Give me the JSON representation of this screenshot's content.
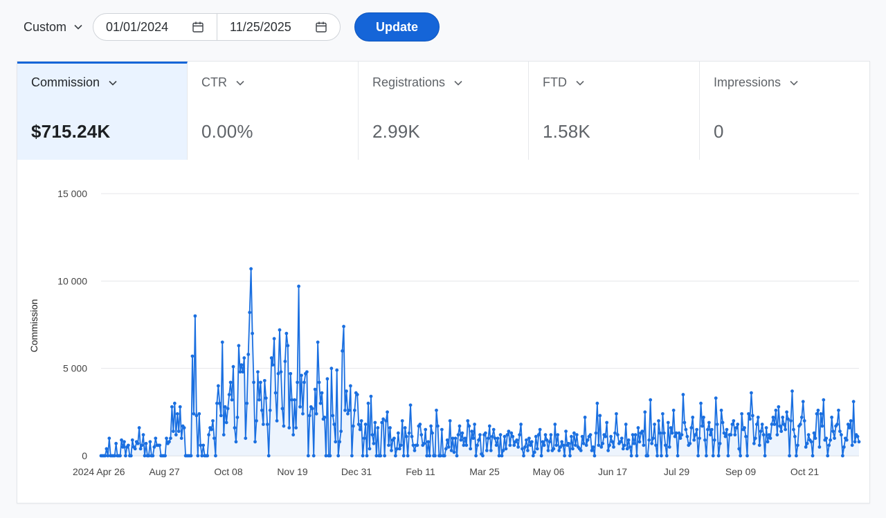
{
  "toolbar": {
    "range_label": "Custom",
    "start_date": "01/01/2024",
    "end_date": "11/25/2025",
    "update_label": "Update"
  },
  "metrics": [
    {
      "label": "Commission",
      "value": "$715.24K",
      "active": true
    },
    {
      "label": "CTR",
      "value": "0.00%",
      "active": false
    },
    {
      "label": "Registrations",
      "value": "2.99K",
      "active": false
    },
    {
      "label": "FTD",
      "value": "1.58K",
      "active": false
    },
    {
      "label": "Impressions",
      "value": "0",
      "active": false
    }
  ],
  "colors": {
    "accent": "#1565d8",
    "line": "#1a6fe0",
    "fill": "#e6effc"
  },
  "icons": {
    "metric_dropdown": "chevron-down-icon",
    "date": "calendar-icon"
  },
  "chart_data": {
    "type": "line",
    "ylabel": "Commission",
    "ylim": [
      0,
      15000
    ],
    "yticks": [
      0,
      5000,
      10000,
      15000
    ],
    "ytick_labels": [
      "0",
      "5 000",
      "10 000",
      "15 000"
    ],
    "xtick_labels": [
      "2024 Apr 26",
      "Aug 27",
      "Oct 08",
      "Nov 19",
      "Dec 31",
      "Feb 11",
      "Mar 25",
      "May 06",
      "Jun 17",
      "Jul 29",
      "Sep 09",
      "Oct 21"
    ],
    "grid": true,
    "series": [
      {
        "values": [
          0,
          0,
          0,
          0,
          400,
          0,
          1000,
          0,
          0,
          0,
          0,
          700,
          0,
          0,
          0,
          900,
          500,
          800,
          0,
          500,
          600,
          0,
          0,
          900,
          500,
          400,
          800,
          700,
          1600,
          400,
          600,
          1200,
          0,
          700,
          0,
          0,
          800,
          0,
          0,
          500,
          1000,
          600,
          600,
          600,
          0,
          0,
          0,
          0,
          1000,
          700,
          800,
          1000,
          2800,
          1400,
          3000,
          1200,
          2400,
          1400,
          2800,
          1000,
          1700,
          1600,
          0,
          0,
          0,
          0,
          0,
          5700,
          2400,
          8000,
          2300,
          0,
          2400,
          600,
          0,
          600,
          0,
          0,
          0,
          1200,
          1600,
          1500,
          2000,
          1000,
          0,
          3000,
          4000,
          3000,
          2300,
          6500,
          1200,
          2800,
          1900,
          2700,
          3500,
          4200,
          3200,
          5100,
          1600,
          800,
          2200,
          6300,
          4800,
          5200,
          4800,
          5600,
          1000,
          3000,
          5800,
          8200,
          10700,
          7000,
          4200,
          800,
          2000,
          4800,
          3200,
          4200,
          2600,
          1800,
          4300,
          3300,
          1800,
          0,
          2600,
          5600,
          5200,
          6700,
          3600,
          2000,
          4700,
          7200,
          4800,
          2700,
          1700,
          5400,
          7000,
          6300,
          1600,
          4700,
          3200,
          1200,
          3200,
          1600,
          4200,
          9700,
          2800,
          4600,
          2400,
          4200,
          4700,
          4800,
          0,
          2300,
          2800,
          2700,
          0,
          3800,
          2400,
          6500,
          4200,
          3000,
          3600,
          2100,
          2200,
          0,
          4400,
          0,
          0,
          5000,
          2300,
          1800,
          800,
          4900,
          0,
          800,
          1400,
          6000,
          7400,
          2600,
          3700,
          2400,
          2600,
          4000,
          0,
          1700,
          2600,
          3600,
          3500,
          1800,
          1500,
          2000,
          0,
          1000,
          1800,
          0,
          3000,
          400,
          3400,
          1200,
          700,
          1900,
          0,
          1600,
          0,
          0,
          1900,
          2100,
          0,
          2000,
          2500,
          600,
          1600,
          300,
          900,
          1000,
          0,
          400,
          1300,
          400,
          600,
          2000,
          0,
          1600,
          1100,
          0,
          1300,
          2900,
          1100,
          600,
          300,
          600,
          600,
          1700,
          1800,
          1200,
          600,
          700,
          1500,
          0,
          800,
          0,
          1700,
          1300,
          0,
          0,
          2600,
          1700,
          0,
          0,
          1500,
          0,
          0,
          400,
          900,
          500,
          2000,
          300,
          1000,
          200,
          1000,
          0,
          1200,
          1700,
          900,
          1300,
          600,
          1000,
          600,
          2000,
          1700,
          400,
          1400,
          1000,
          1800,
          0,
          600,
          900,
          1200,
          100,
          0,
          1200,
          1300,
          300,
          1000,
          1700,
          300,
          1100,
          1500,
          1000,
          600,
          1000,
          0,
          1200,
          0,
          300,
          1100,
          400,
          1200,
          1400,
          600,
          1300,
          1100,
          600,
          800,
          900,
          500,
          1200,
          1800,
          400,
          0,
          500,
          900,
          300,
          1000,
          600,
          800,
          0,
          200,
          1100,
          400,
          1200,
          1500,
          0,
          800,
          600,
          1200,
          900,
          300,
          800,
          1200,
          300,
          400,
          1800,
          600,
          1200,
          300,
          500,
          800,
          600,
          0,
          1400,
          600,
          700,
          0,
          1100,
          400,
          1300,
          600,
          1200,
          500,
          400,
          300,
          1100,
          700,
          2200,
          600,
          900,
          1100,
          1200,
          300,
          500,
          0,
          1300,
          3000,
          600,
          2300,
          500,
          700,
          1200,
          1100,
          1900,
          300,
          600,
          1100,
          800,
          500,
          1300,
          2400,
          1200,
          700,
          800,
          1000,
          400,
          600,
          1800,
          400,
          900,
          500,
          0,
          1200,
          700,
          1200,
          0,
          1600,
          800,
          1300,
          1400,
          600,
          2500,
          0,
          0,
          900,
          3200,
          700,
          1000,
          1800,
          600,
          0,
          2000,
          1300,
          0,
          2400,
          1300,
          600,
          0,
          1900,
          500,
          1600,
          1300,
          2600,
          1100,
          1300,
          0,
          1300,
          1000,
          1200,
          3500,
          1900,
          1500,
          1100,
          600,
          700,
          1600,
          2200,
          900,
          1200,
          1500,
          0,
          1000,
          3000,
          1700,
          2200,
          900,
          0,
          1500,
          1900,
          1200,
          1500,
          0,
          900,
          3300,
          1800,
          0,
          700,
          2600,
          1900,
          1300,
          1100,
          1500,
          0,
          1200,
          1200,
          1800,
          2000,
          1200,
          1600,
          1800,
          400,
          0,
          2400,
          1500,
          1600,
          1100,
          0,
          2400,
          2100,
          3600,
          2300,
          700,
          1000,
          1800,
          2200,
          600,
          1400,
          1800,
          1200,
          0,
          1600,
          800,
          1200,
          1000,
          1800,
          2200,
          1800,
          2600,
          1200,
          2800,
          1700,
          1400,
          2200,
          1800,
          1500,
          2500,
          2100,
          0,
          2000,
          3700,
          1500,
          1100,
          0,
          600,
          1700,
          1800,
          2200,
          3100,
          2000,
          500,
          700,
          1200,
          900,
          800,
          0,
          1300,
          1000,
          2400,
          2600,
          500,
          2400,
          1700,
          3200,
          900,
          1000,
          0,
          600,
          900,
          2200,
          1400,
          1000,
          1700,
          1800,
          2600,
          1400,
          1200,
          0,
          500,
          1000,
          900,
          1800,
          1600,
          2000,
          600,
          3100,
          800,
          1200,
          1100,
          800
        ]
      }
    ]
  }
}
